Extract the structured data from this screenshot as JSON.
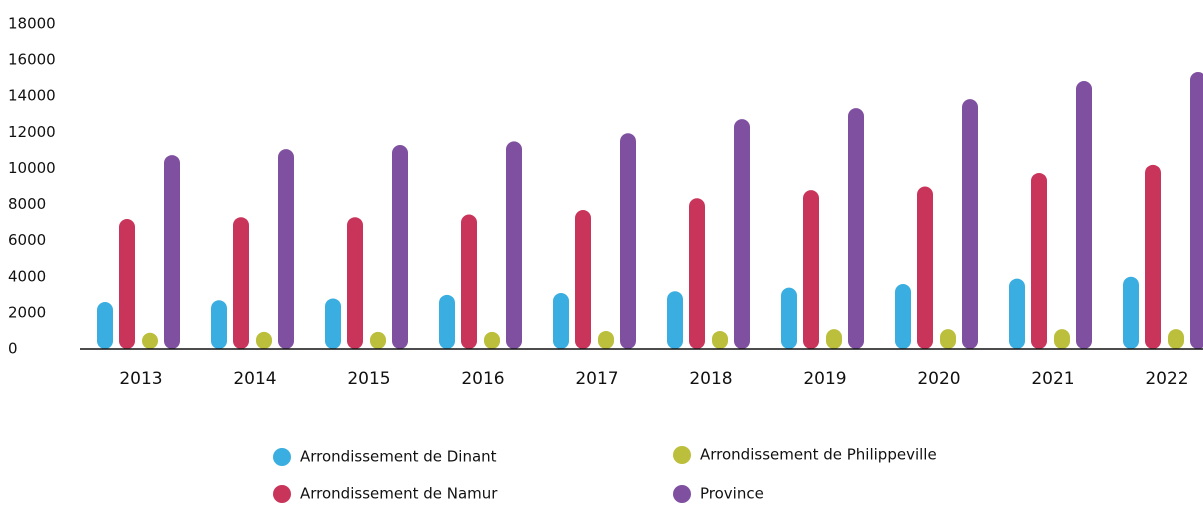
{
  "chart_data": {
    "type": "bar",
    "categories": [
      "2013",
      "2014",
      "2015",
      "2016",
      "2017",
      "2018",
      "2019",
      "2020",
      "2021",
      "2022"
    ],
    "series": [
      {
        "name": "Arrondissement de Dinant",
        "color": "#3aaee0",
        "values": [
          2600,
          2700,
          2800,
          3000,
          3100,
          3200,
          3400,
          3600,
          3900,
          4000
        ]
      },
      {
        "name": "Arrondissement de Namur",
        "color": "#c9345a",
        "values": [
          7200,
          7300,
          7300,
          7450,
          7700,
          8350,
          8800,
          9000,
          9750,
          10200
        ]
      },
      {
        "name": "Arrondissement de Philippeville",
        "color": "#bcbf3b",
        "values": [
          900,
          950,
          950,
          950,
          1000,
          1000,
          1100,
          1100,
          1100,
          1100
        ]
      },
      {
        "name": "Province",
        "color": "#7f4fa0",
        "values": [
          10740,
          11070,
          11300,
          11500,
          11950,
          12730,
          13340,
          13840,
          14840,
          15340
        ]
      }
    ],
    "ylim": [
      0,
      18000
    ],
    "yticks": [
      0,
      2000,
      4000,
      6000,
      8000,
      10000,
      12000,
      14000,
      16000,
      18000
    ],
    "grid": false
  }
}
